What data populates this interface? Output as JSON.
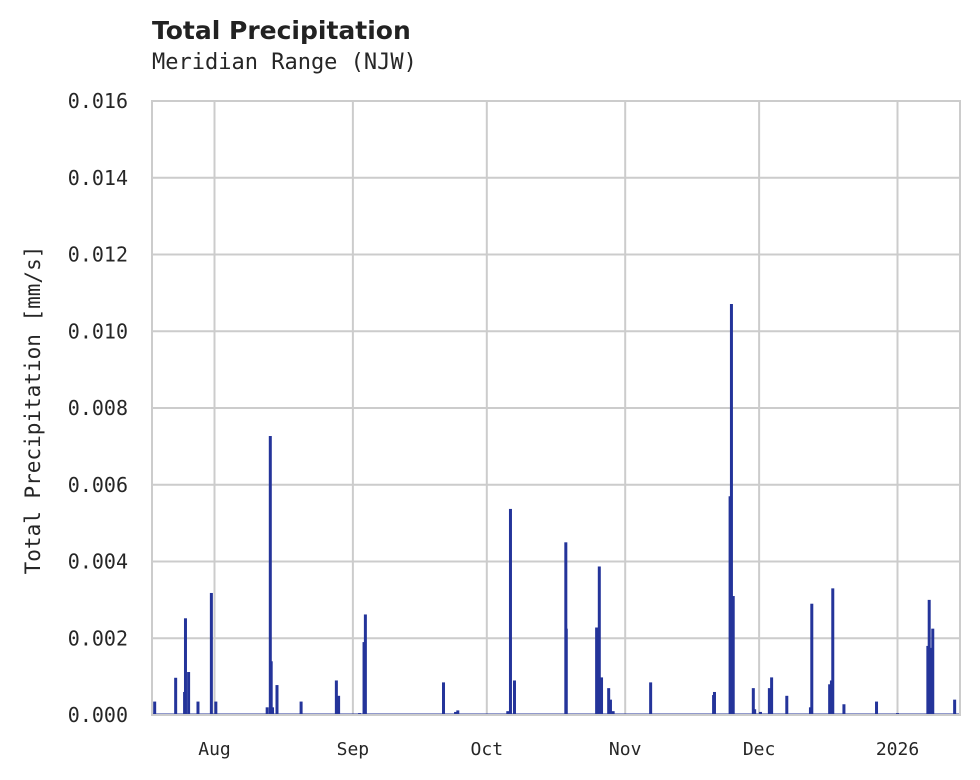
{
  "header": {
    "title": "Total Precipitation",
    "subtitle": "Meridian Range (NJW)"
  },
  "colors": {
    "bar": "#24349a",
    "grid": "#cccccc",
    "frame": "#cccccc",
    "text": "#262626"
  },
  "chart_data": {
    "type": "bar",
    "title": "Total Precipitation",
    "subtitle": "Meridian Range (NJW)",
    "xlabel": "",
    "ylabel": "Total Precipitation [mm/s]",
    "ylim": [
      0,
      0.016
    ],
    "yticks": [
      "0.000",
      "0.002",
      "0.004",
      "0.006",
      "0.008",
      "0.010",
      "0.012",
      "0.014",
      "0.016"
    ],
    "xticks": [
      {
        "label": "Aug",
        "day": 14
      },
      {
        "label": "Sep",
        "day": 45
      },
      {
        "label": "Oct",
        "day": 75
      },
      {
        "label": "Nov",
        "day": 106
      },
      {
        "label": "Dec",
        "day": 136
      },
      {
        "label": "2026",
        "day": 167
      }
    ],
    "x_range_days": [
      0,
      181
    ],
    "x_start_date": "2025-07-18",
    "grid": true,
    "legend": null,
    "series": [
      {
        "name": "Total Precipitation",
        "points": [
          {
            "day": 0.6,
            "value": 0.00035
          },
          {
            "day": 5.3,
            "value": 0.00097
          },
          {
            "day": 7.3,
            "value": 0.0006
          },
          {
            "day": 7.5,
            "value": 0.00252
          },
          {
            "day": 8.2,
            "value": 0.00112
          },
          {
            "day": 10.3,
            "value": 0.00035
          },
          {
            "day": 13.3,
            "value": 0.00318
          },
          {
            "day": 14.3,
            "value": 0.00035
          },
          {
            "day": 25.8,
            "value": 0.0002
          },
          {
            "day": 26.5,
            "value": 0.00727
          },
          {
            "day": 26.7,
            "value": 0.0014
          },
          {
            "day": 27.0,
            "value": 0.0002
          },
          {
            "day": 28.0,
            "value": 0.00078
          },
          {
            "day": 33.4,
            "value": 0.00035
          },
          {
            "day": 41.3,
            "value": 0.0009
          },
          {
            "day": 41.8,
            "value": 0.0005
          },
          {
            "day": 46.5,
            "value": 5e-05
          },
          {
            "day": 47.5,
            "value": 0.0019
          },
          {
            "day": 47.8,
            "value": 0.00262
          },
          {
            "day": 65.3,
            "value": 0.00085
          },
          {
            "day": 68.0,
            "value": 8e-05
          },
          {
            "day": 68.5,
            "value": 0.00012
          },
          {
            "day": 79.7,
            "value": 0.0001
          },
          {
            "day": 80.3,
            "value": 0.00537
          },
          {
            "day": 81.2,
            "value": 0.0009
          },
          {
            "day": 92.7,
            "value": 0.0045
          },
          {
            "day": 92.8,
            "value": 0.00225
          },
          {
            "day": 99.6,
            "value": 0.00228
          },
          {
            "day": 100.2,
            "value": 0.00387
          },
          {
            "day": 100.7,
            "value": 0.00098
          },
          {
            "day": 102.3,
            "value": 0.0007
          },
          {
            "day": 102.7,
            "value": 0.0004
          },
          {
            "day": 103.3,
            "value": 0.0001
          },
          {
            "day": 111.7,
            "value": 0.00085
          },
          {
            "day": 125.8,
            "value": 0.00052
          },
          {
            "day": 126.0,
            "value": 0.0006
          },
          {
            "day": 129.5,
            "value": 0.0057
          },
          {
            "day": 129.8,
            "value": 0.01071
          },
          {
            "day": 130.2,
            "value": 0.0031
          },
          {
            "day": 134.7,
            "value": 0.0007
          },
          {
            "day": 135.0,
            "value": 0.00015
          },
          {
            "day": 136.3,
            "value": 8e-05
          },
          {
            "day": 138.3,
            "value": 0.0007
          },
          {
            "day": 138.8,
            "value": 0.00098
          },
          {
            "day": 142.2,
            "value": 0.0005
          },
          {
            "day": 147.5,
            "value": 0.0002
          },
          {
            "day": 147.8,
            "value": 0.0029
          },
          {
            "day": 151.8,
            "value": 0.0008
          },
          {
            "day": 152.2,
            "value": 0.0009
          },
          {
            "day": 152.5,
            "value": 0.0033
          },
          {
            "day": 155.0,
            "value": 0.00028
          },
          {
            "day": 162.3,
            "value": 0.00035
          },
          {
            "day": 167.0,
            "value": 5e-05
          },
          {
            "day": 173.8,
            "value": 0.0018
          },
          {
            "day": 174.1,
            "value": 0.003
          },
          {
            "day": 174.5,
            "value": 0.00175
          },
          {
            "day": 174.9,
            "value": 0.00225
          },
          {
            "day": 179.8,
            "value": 0.0004
          }
        ]
      }
    ]
  }
}
